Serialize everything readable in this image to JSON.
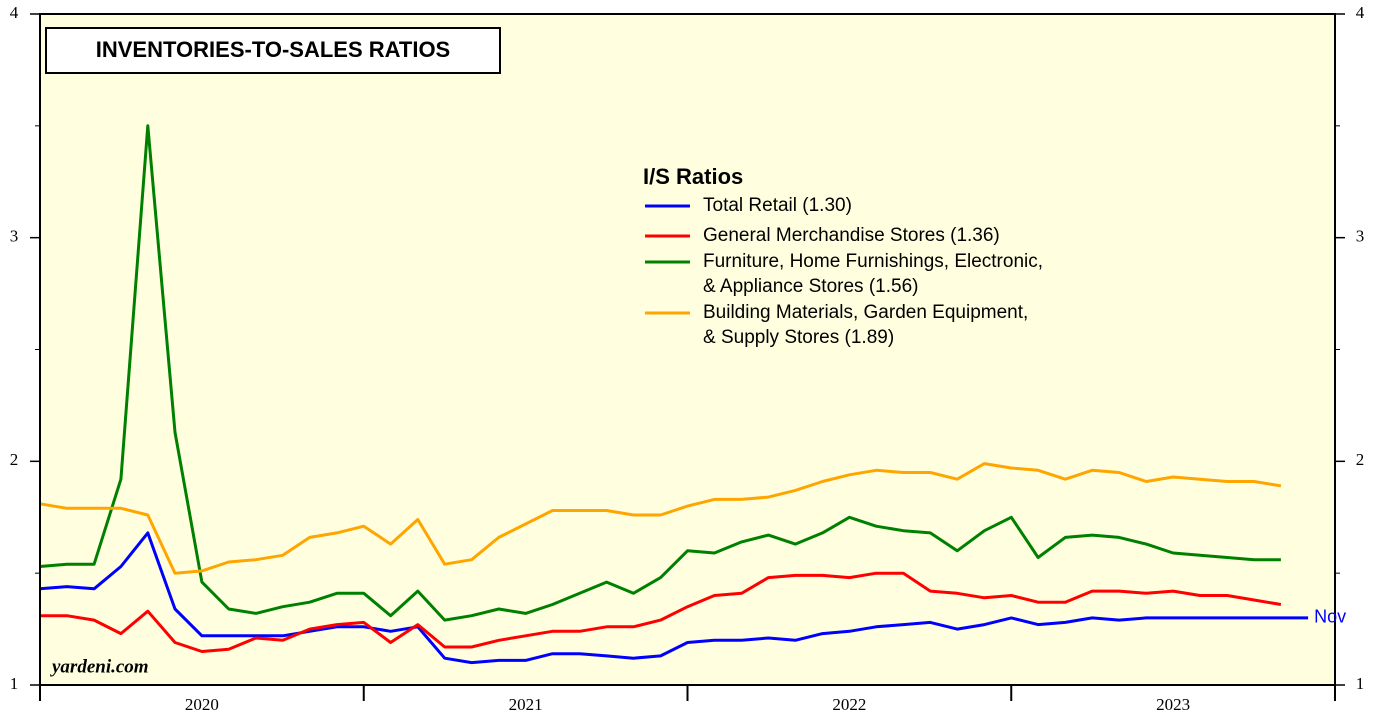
{
  "chart_data": {
    "type": "line",
    "title": "INVENTORIES-TO-SALES RATIOS",
    "legend_title": "I/S Ratios",
    "source": "yardeni.com",
    "annotation": {
      "text": "Nov",
      "color": "#0000ff"
    },
    "year_labels": [
      "2020",
      "2021",
      "2022",
      "2023"
    ],
    "x": [
      2020,
      2020.083,
      2020.167,
      2020.25,
      2020.333,
      2020.417,
      2020.5,
      2020.583,
      2020.667,
      2020.75,
      2020.833,
      2020.917,
      2021,
      2021.083,
      2021.167,
      2021.25,
      2021.333,
      2021.417,
      2021.5,
      2021.583,
      2021.667,
      2021.75,
      2021.833,
      2021.917,
      2022,
      2022.083,
      2022.167,
      2022.25,
      2022.333,
      2022.417,
      2022.5,
      2022.583,
      2022.667,
      2022.75,
      2022.833,
      2022.917,
      2023,
      2023.083,
      2023.167,
      2023.25,
      2023.333,
      2023.417,
      2023.5,
      2023.583,
      2023.667,
      2023.75,
      2023.833,
      2023.917
    ],
    "xlim": [
      2020,
      2024
    ],
    "xticks": [
      2020,
      2021,
      2022,
      2023,
      2024
    ],
    "ylim": [
      1,
      4
    ],
    "yticks": [
      1,
      2,
      3,
      4
    ],
    "yminor": [
      1.5,
      2.5,
      3.5
    ],
    "series": [
      {
        "name": [
          "Total Retail (1.30)"
        ],
        "color": "#0000ff",
        "values": [
          1.43,
          1.44,
          1.43,
          1.53,
          1.68,
          1.34,
          1.22,
          1.22,
          1.22,
          1.22,
          1.24,
          1.26,
          1.26,
          1.24,
          1.26,
          1.12,
          1.1,
          1.11,
          1.11,
          1.14,
          1.14,
          1.13,
          1.12,
          1.13,
          1.19,
          1.2,
          1.2,
          1.21,
          1.2,
          1.23,
          1.24,
          1.26,
          1.27,
          1.28,
          1.25,
          1.27,
          1.3,
          1.27,
          1.28,
          1.3,
          1.29,
          1.3,
          1.3,
          1.3,
          1.3,
          1.3,
          1.3,
          1.3
        ]
      },
      {
        "name": [
          "General Merchandise Stores (1.36)"
        ],
        "color": "#ff0000",
        "values": [
          1.31,
          1.31,
          1.29,
          1.23,
          1.33,
          1.19,
          1.15,
          1.16,
          1.21,
          1.2,
          1.25,
          1.27,
          1.28,
          1.19,
          1.27,
          1.17,
          1.17,
          1.2,
          1.22,
          1.24,
          1.24,
          1.26,
          1.26,
          1.29,
          1.35,
          1.4,
          1.41,
          1.48,
          1.49,
          1.49,
          1.48,
          1.5,
          1.5,
          1.42,
          1.41,
          1.39,
          1.4,
          1.37,
          1.37,
          1.42,
          1.42,
          1.41,
          1.42,
          1.4,
          1.4,
          1.38,
          1.36,
          null
        ]
      },
      {
        "name": [
          "Furniture, Home Furnishings, Electronic,",
          "& Appliance Stores (1.56)"
        ],
        "color": "#008000",
        "values": [
          1.53,
          1.54,
          1.54,
          1.92,
          3.5,
          2.13,
          1.46,
          1.34,
          1.32,
          1.35,
          1.37,
          1.41,
          1.41,
          1.31,
          1.42,
          1.29,
          1.31,
          1.34,
          1.32,
          1.36,
          1.41,
          1.46,
          1.41,
          1.48,
          1.6,
          1.59,
          1.64,
          1.67,
          1.63,
          1.68,
          1.75,
          1.71,
          1.69,
          1.68,
          1.6,
          1.69,
          1.75,
          1.57,
          1.66,
          1.67,
          1.66,
          1.63,
          1.59,
          1.58,
          1.57,
          1.56,
          1.56,
          null
        ]
      },
      {
        "name": [
          "Building Materials, Garden Equipment,",
          "& Supply Stores  (1.89)"
        ],
        "color": "#ffa500",
        "values": [
          1.81,
          1.79,
          1.79,
          1.79,
          1.76,
          1.5,
          1.51,
          1.55,
          1.56,
          1.58,
          1.66,
          1.68,
          1.71,
          1.63,
          1.74,
          1.54,
          1.56,
          1.66,
          1.72,
          1.78,
          1.78,
          1.78,
          1.76,
          1.76,
          1.8,
          1.83,
          1.83,
          1.84,
          1.87,
          1.91,
          1.94,
          1.96,
          1.95,
          1.95,
          1.92,
          1.99,
          1.97,
          1.96,
          1.92,
          1.96,
          1.95,
          1.91,
          1.93,
          1.92,
          1.91,
          1.91,
          1.89,
          null
        ]
      }
    ]
  }
}
